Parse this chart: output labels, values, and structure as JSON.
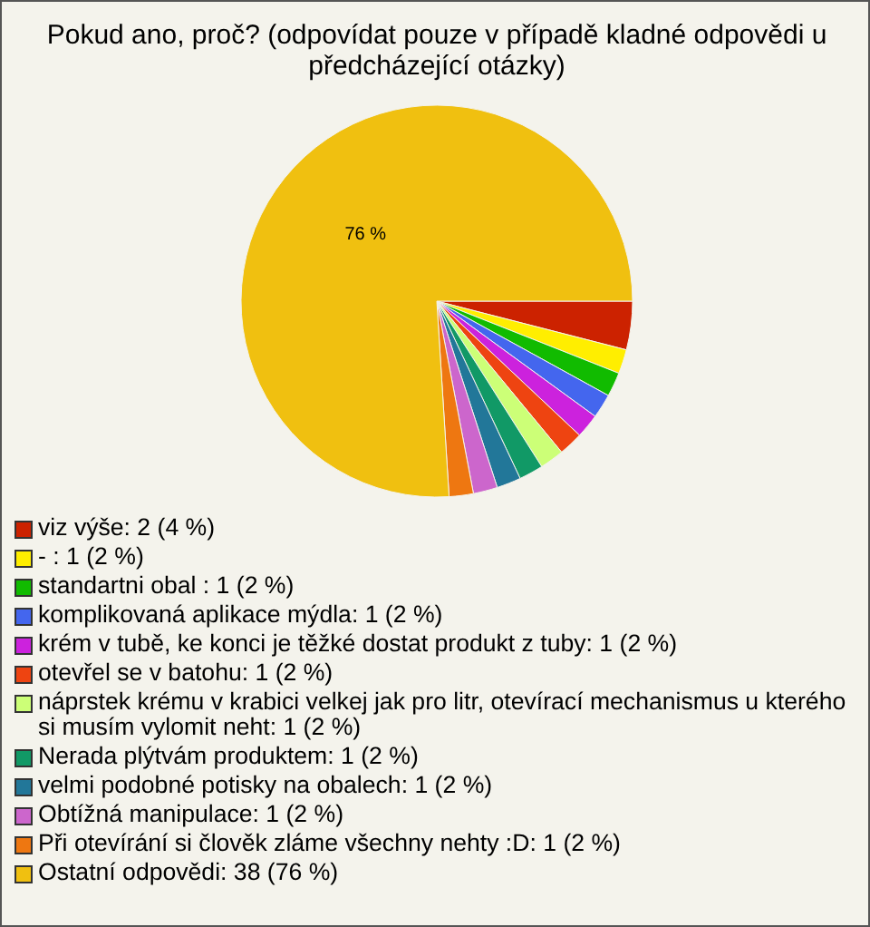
{
  "chart_data": {
    "type": "pie",
    "title": "Pokud ano, proč? (odpovídat pouze v případě kladné odpovědi u předcházející otázky)",
    "categories": [
      "viz výše: 2 (4 %)",
      "- : 1 (2 %)",
      "standartni obal : 1 (2 %)",
      "komplikovaná aplikace mýdla: 1 (2 %)",
      "krém v tubě, ke konci je těžké dostat produkt z tuby: 1 (2 %)",
      "otevřel se v batohu: 1 (2 %)",
      "náprstek krému v krabici velkej jak pro litr, otevírací mechanismus u kterého si musím vylomit neht: 1 (2 %)",
      "Nerada plýtvám produktem: 1 (2 %)",
      "velmi podobné potisky na obalech: 1 (2 %)",
      "Obtížná manipulace: 1 (2 %)",
      "Při otevírání si člověk zláme všechny nehty :D: 1 (2 %)",
      "Ostatní odpovědi: 38 (76 %)"
    ],
    "values": [
      4,
      2,
      2,
      2,
      2,
      2,
      2,
      2,
      2,
      2,
      2,
      76
    ],
    "colors": [
      "#cc2200",
      "#ffee00",
      "#11bb00",
      "#4466ee",
      "#cc22dd",
      "#ee4411",
      "#ccff77",
      "#119966",
      "#227799",
      "#cc66cc",
      "#ee7711",
      "#f0c010"
    ],
    "value_labels": [
      null,
      null,
      null,
      null,
      null,
      null,
      null,
      null,
      null,
      null,
      null,
      "76 %"
    ],
    "legend": "bottom"
  }
}
